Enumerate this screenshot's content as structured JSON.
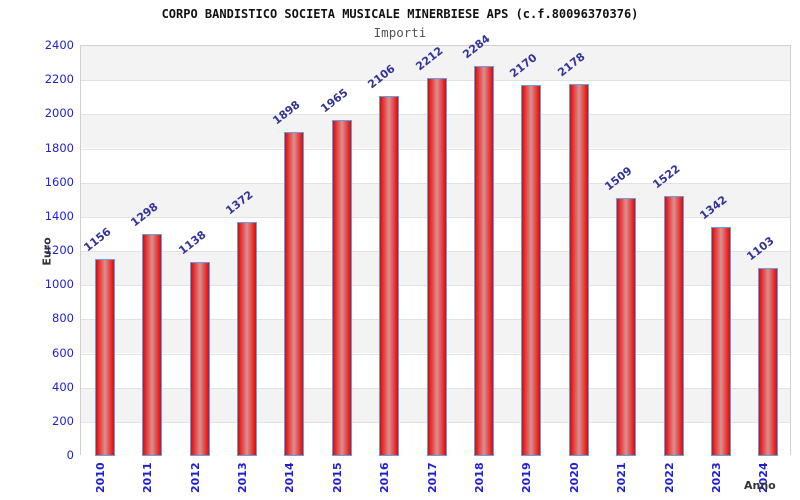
{
  "header": {
    "title": "CORPO BANDISTICO SOCIETA MUSICALE MINERBIESE APS (c.f.80096370376)",
    "subtitle": "Importi"
  },
  "chart_data": {
    "type": "bar",
    "title": "CORPO BANDISTICO SOCIETA MUSICALE MINERBIESE APS (c.f.80096370376)",
    "subtitle": "Importi",
    "xlabel": "Anno",
    "ylabel": "Euro",
    "categories": [
      "2010",
      "2011",
      "2012",
      "2013",
      "2014",
      "2015",
      "2016",
      "2017",
      "2018",
      "2019",
      "2020",
      "2021",
      "2022",
      "2023",
      "2024"
    ],
    "values": [
      1156,
      1298,
      1138,
      1372,
      1898,
      1965,
      2106,
      2212,
      2284,
      2170,
      2178,
      1509,
      1522,
      1342,
      1103
    ],
    "ylim": [
      0,
      2400
    ],
    "ytick_step": 200,
    "grid": "horizontal-stripes",
    "legend": "none",
    "colors": {
      "bar_fill_edge": "#c51111",
      "bar_fill_bright": "#ea2424",
      "bar_fill_center": "#d99090",
      "bar_border": "#5ea3e5",
      "axis_tick_label": "#1f1fd4",
      "value_label": "#333399",
      "stripe_band": "#f3f3f3",
      "gridline": "#e2e2e2",
      "title": "#111111",
      "axis_title": "#333333"
    }
  }
}
